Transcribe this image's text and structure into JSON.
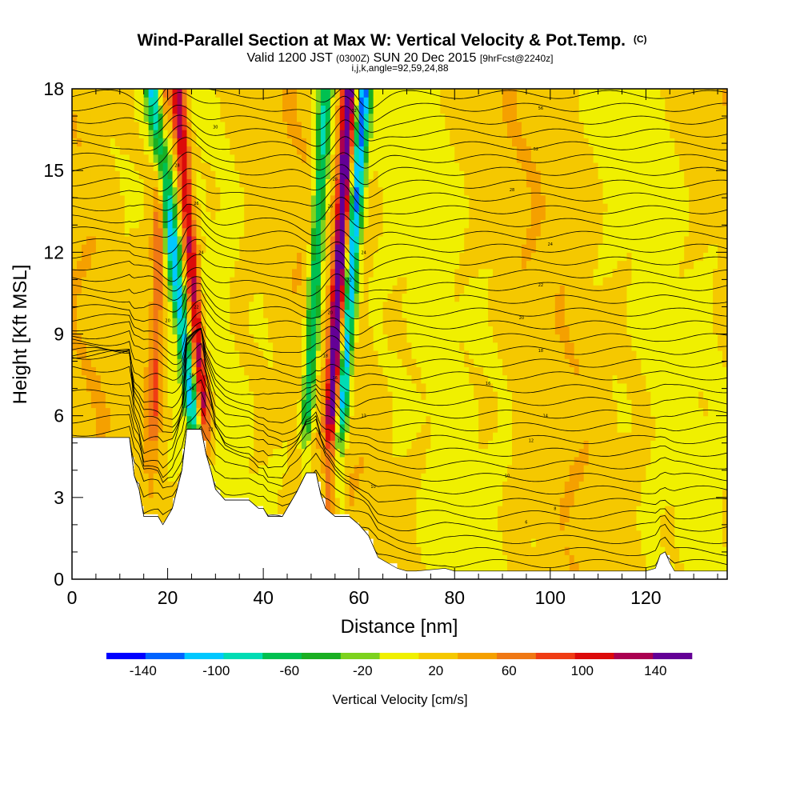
{
  "title": {
    "main": "Wind-Parallel Section at Max W: Vertical Velocity & Pot.Temp.",
    "copyright": "(C)",
    "valid_a": "Valid 1200 JST",
    "valid_z": "(0300Z)",
    "valid_b": "SUN 20 Dec 2015",
    "fcst": "[9hrFcst@2240z]",
    "ijk": "i,j,k,angle=92,59,24,88"
  },
  "chart_data": {
    "type": "heatmap",
    "xlabel": "Distance [nm]",
    "ylabel": "Height [Kft MSL]",
    "xlim": [
      0,
      137
    ],
    "ylim": [
      0,
      18
    ],
    "x_ticks": [
      0,
      20,
      40,
      60,
      80,
      100,
      120
    ],
    "y_ticks": [
      0,
      3,
      6,
      9,
      12,
      15,
      18
    ],
    "colorbar": {
      "label": "Vertical Velocity [cm/s]",
      "tick_labels": [
        "-140",
        "-100",
        "-60",
        "-20",
        "20",
        "60",
        "100",
        "140"
      ],
      "bins": [
        -160,
        -140,
        -120,
        -100,
        -80,
        -60,
        -40,
        -20,
        0,
        20,
        40,
        60,
        80,
        100,
        120,
        140,
        160
      ],
      "colors": [
        "#0000ff",
        "#0063ff",
        "#00c8ff",
        "#00dcb4",
        "#00c050",
        "#1aaf22",
        "#7dd21e",
        "#f0f000",
        "#f5c800",
        "#f5a000",
        "#f07814",
        "#f03c14",
        "#dc0a0a",
        "#aa0050",
        "#640096"
      ]
    },
    "background_value_cm_s": [
      -20,
      20
    ],
    "updraft_bands": [
      {
        "x_base": 28,
        "x_top": 22,
        "peak_cm_s": 110
      },
      {
        "x_base": 54,
        "x_top": 58,
        "peak_cm_s": 150
      },
      {
        "x_base": 17,
        "x_top": 19,
        "peak_cm_s": 60
      }
    ],
    "downdraft_bands": [
      {
        "x_base": 26,
        "x_top": 17,
        "peak_cm_s": -110
      },
      {
        "x_base": 56,
        "x_top": 61,
        "peak_cm_s": -130
      },
      {
        "x_base": 49,
        "x_top": 53,
        "peak_cm_s": -90
      }
    ],
    "terrain_kft": [
      [
        0,
        5.2
      ],
      [
        9,
        5.2
      ],
      [
        12,
        5.2
      ],
      [
        13,
        3.8
      ],
      [
        14,
        3.3
      ],
      [
        15,
        2.3
      ],
      [
        18,
        2.3
      ],
      [
        19,
        2.0
      ],
      [
        20,
        2.3
      ],
      [
        21,
        2.6
      ],
      [
        23,
        4.0
      ],
      [
        24,
        5.5
      ],
      [
        27,
        5.5
      ],
      [
        28,
        4.6
      ],
      [
        29,
        4.0
      ],
      [
        30,
        3.3
      ],
      [
        32,
        2.9
      ],
      [
        37,
        2.9
      ],
      [
        39,
        2.6
      ],
      [
        40,
        2.6
      ],
      [
        41,
        2.3
      ],
      [
        44,
        2.3
      ],
      [
        45,
        2.6
      ],
      [
        47,
        3.2
      ],
      [
        49,
        3.9
      ],
      [
        51,
        3.9
      ],
      [
        52,
        3.1
      ],
      [
        53,
        2.6
      ],
      [
        55,
        2.3
      ],
      [
        58,
        2.3
      ],
      [
        60,
        2.0
      ],
      [
        62,
        1.6
      ],
      [
        63,
        1.2
      ],
      [
        64,
        0.8
      ],
      [
        66,
        0.6
      ],
      [
        68,
        0.4
      ],
      [
        70,
        0.3
      ],
      [
        71,
        0.3
      ],
      [
        72,
        0.3
      ],
      [
        78,
        0.4
      ],
      [
        80,
        0.3
      ],
      [
        100,
        0.3
      ],
      [
        117,
        0.3
      ],
      [
        120,
        0.3
      ],
      [
        122,
        0.4
      ],
      [
        123,
        0.9
      ],
      [
        124,
        1.0
      ],
      [
        125,
        0.6
      ],
      [
        126,
        0.3
      ],
      [
        137,
        0.3
      ]
    ],
    "theta_contour_labels": [
      {
        "x": 98,
        "y": 17.3,
        "text": "56"
      },
      {
        "x": 97,
        "y": 15.8,
        "text": "52"
      },
      {
        "x": 92,
        "y": 14.3,
        "text": "28"
      },
      {
        "x": 100,
        "y": 12.3,
        "text": "24"
      },
      {
        "x": 98,
        "y": 10.8,
        "text": "22"
      },
      {
        "x": 94,
        "y": 9.6,
        "text": "20"
      },
      {
        "x": 98,
        "y": 8.4,
        "text": "18"
      },
      {
        "x": 87,
        "y": 7.2,
        "text": "16"
      },
      {
        "x": 99,
        "y": 6.0,
        "text": "14"
      },
      {
        "x": 96,
        "y": 5.1,
        "text": "12"
      },
      {
        "x": 91,
        "y": 3.8,
        "text": "10"
      },
      {
        "x": 101,
        "y": 2.6,
        "text": "8"
      },
      {
        "x": 95,
        "y": 2.1,
        "text": "6"
      },
      {
        "x": 63,
        "y": 3.4,
        "text": "10"
      },
      {
        "x": 56,
        "y": 5.1,
        "text": "12"
      },
      {
        "x": 61,
        "y": 6.0,
        "text": "13"
      },
      {
        "x": 55,
        "y": 7.4,
        "text": "16"
      },
      {
        "x": 53,
        "y": 8.2,
        "text": "18"
      },
      {
        "x": 54,
        "y": 9.8,
        "text": "20"
      },
      {
        "x": 58,
        "y": 11.0,
        "text": "22"
      },
      {
        "x": 61,
        "y": 12.0,
        "text": "24"
      },
      {
        "x": 54,
        "y": 13.7,
        "text": "26"
      },
      {
        "x": 55,
        "y": 14.7,
        "text": "28"
      },
      {
        "x": 59,
        "y": 17.2,
        "text": "32"
      },
      {
        "x": 25,
        "y": 7.5,
        "text": "16"
      },
      {
        "x": 25,
        "y": 7.0,
        "text": "14"
      },
      {
        "x": 29,
        "y": 5.5,
        "text": "12"
      },
      {
        "x": 20,
        "y": 9.5,
        "text": "20"
      },
      {
        "x": 26,
        "y": 10.0,
        "text": "22"
      },
      {
        "x": 27,
        "y": 12.0,
        "text": "24"
      },
      {
        "x": 26,
        "y": 13.8,
        "text": "26"
      },
      {
        "x": 22,
        "y": 15.2,
        "text": "28"
      },
      {
        "x": 30,
        "y": 16.6,
        "text": "30"
      }
    ]
  }
}
